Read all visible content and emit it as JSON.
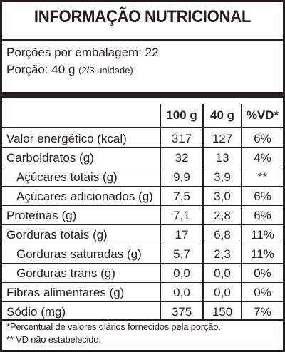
{
  "title": "INFORMAÇÃO NUTRICIONAL",
  "servings_per_package": "Porções por embalagem: 22",
  "serving_size": "Porção: 40 g",
  "serving_size_note": "(2/3 unidade)",
  "columns": [
    "100 g",
    "40 g",
    "%VD*"
  ],
  "rows": [
    {
      "name": "Valor energético (kcal)",
      "v100": "317",
      "vport": "127",
      "vd": "6%"
    },
    {
      "name": "Carboidratos (g)",
      "v100": "32",
      "vport": "13",
      "vd": "4%"
    },
    {
      "name": "Açúcares totais (g)",
      "v100": "9,9",
      "vport": "3,9",
      "vd": "**"
    },
    {
      "name": "Açúcares adicionados (g)",
      "v100": "7,5",
      "vport": "3,0",
      "vd": "6%"
    },
    {
      "name": "Proteínas (g)",
      "v100": "7,1",
      "vport": "2,8",
      "vd": "6%"
    },
    {
      "name": "Gorduras totais (g)",
      "v100": "17",
      "vport": "6,8",
      "vd": "11%"
    },
    {
      "name": "Gorduras saturadas (g)",
      "v100": "5,7",
      "vport": "2,3",
      "vd": "11%"
    },
    {
      "name": "Gorduras trans (g)",
      "v100": "0,0",
      "vport": "0,0",
      "vd": "0%"
    },
    {
      "name": "Fibras alimentares (g)",
      "v100": "0,0",
      "vport": "0,0",
      "vd": "0%"
    },
    {
      "name": "Sódio (mg)",
      "v100": "375",
      "vport": "150",
      "vd": "7%"
    }
  ],
  "footnote_1": "*Percentual de valores diários fornecidos pela porção.",
  "footnote_2": "** VD não estabelecido."
}
